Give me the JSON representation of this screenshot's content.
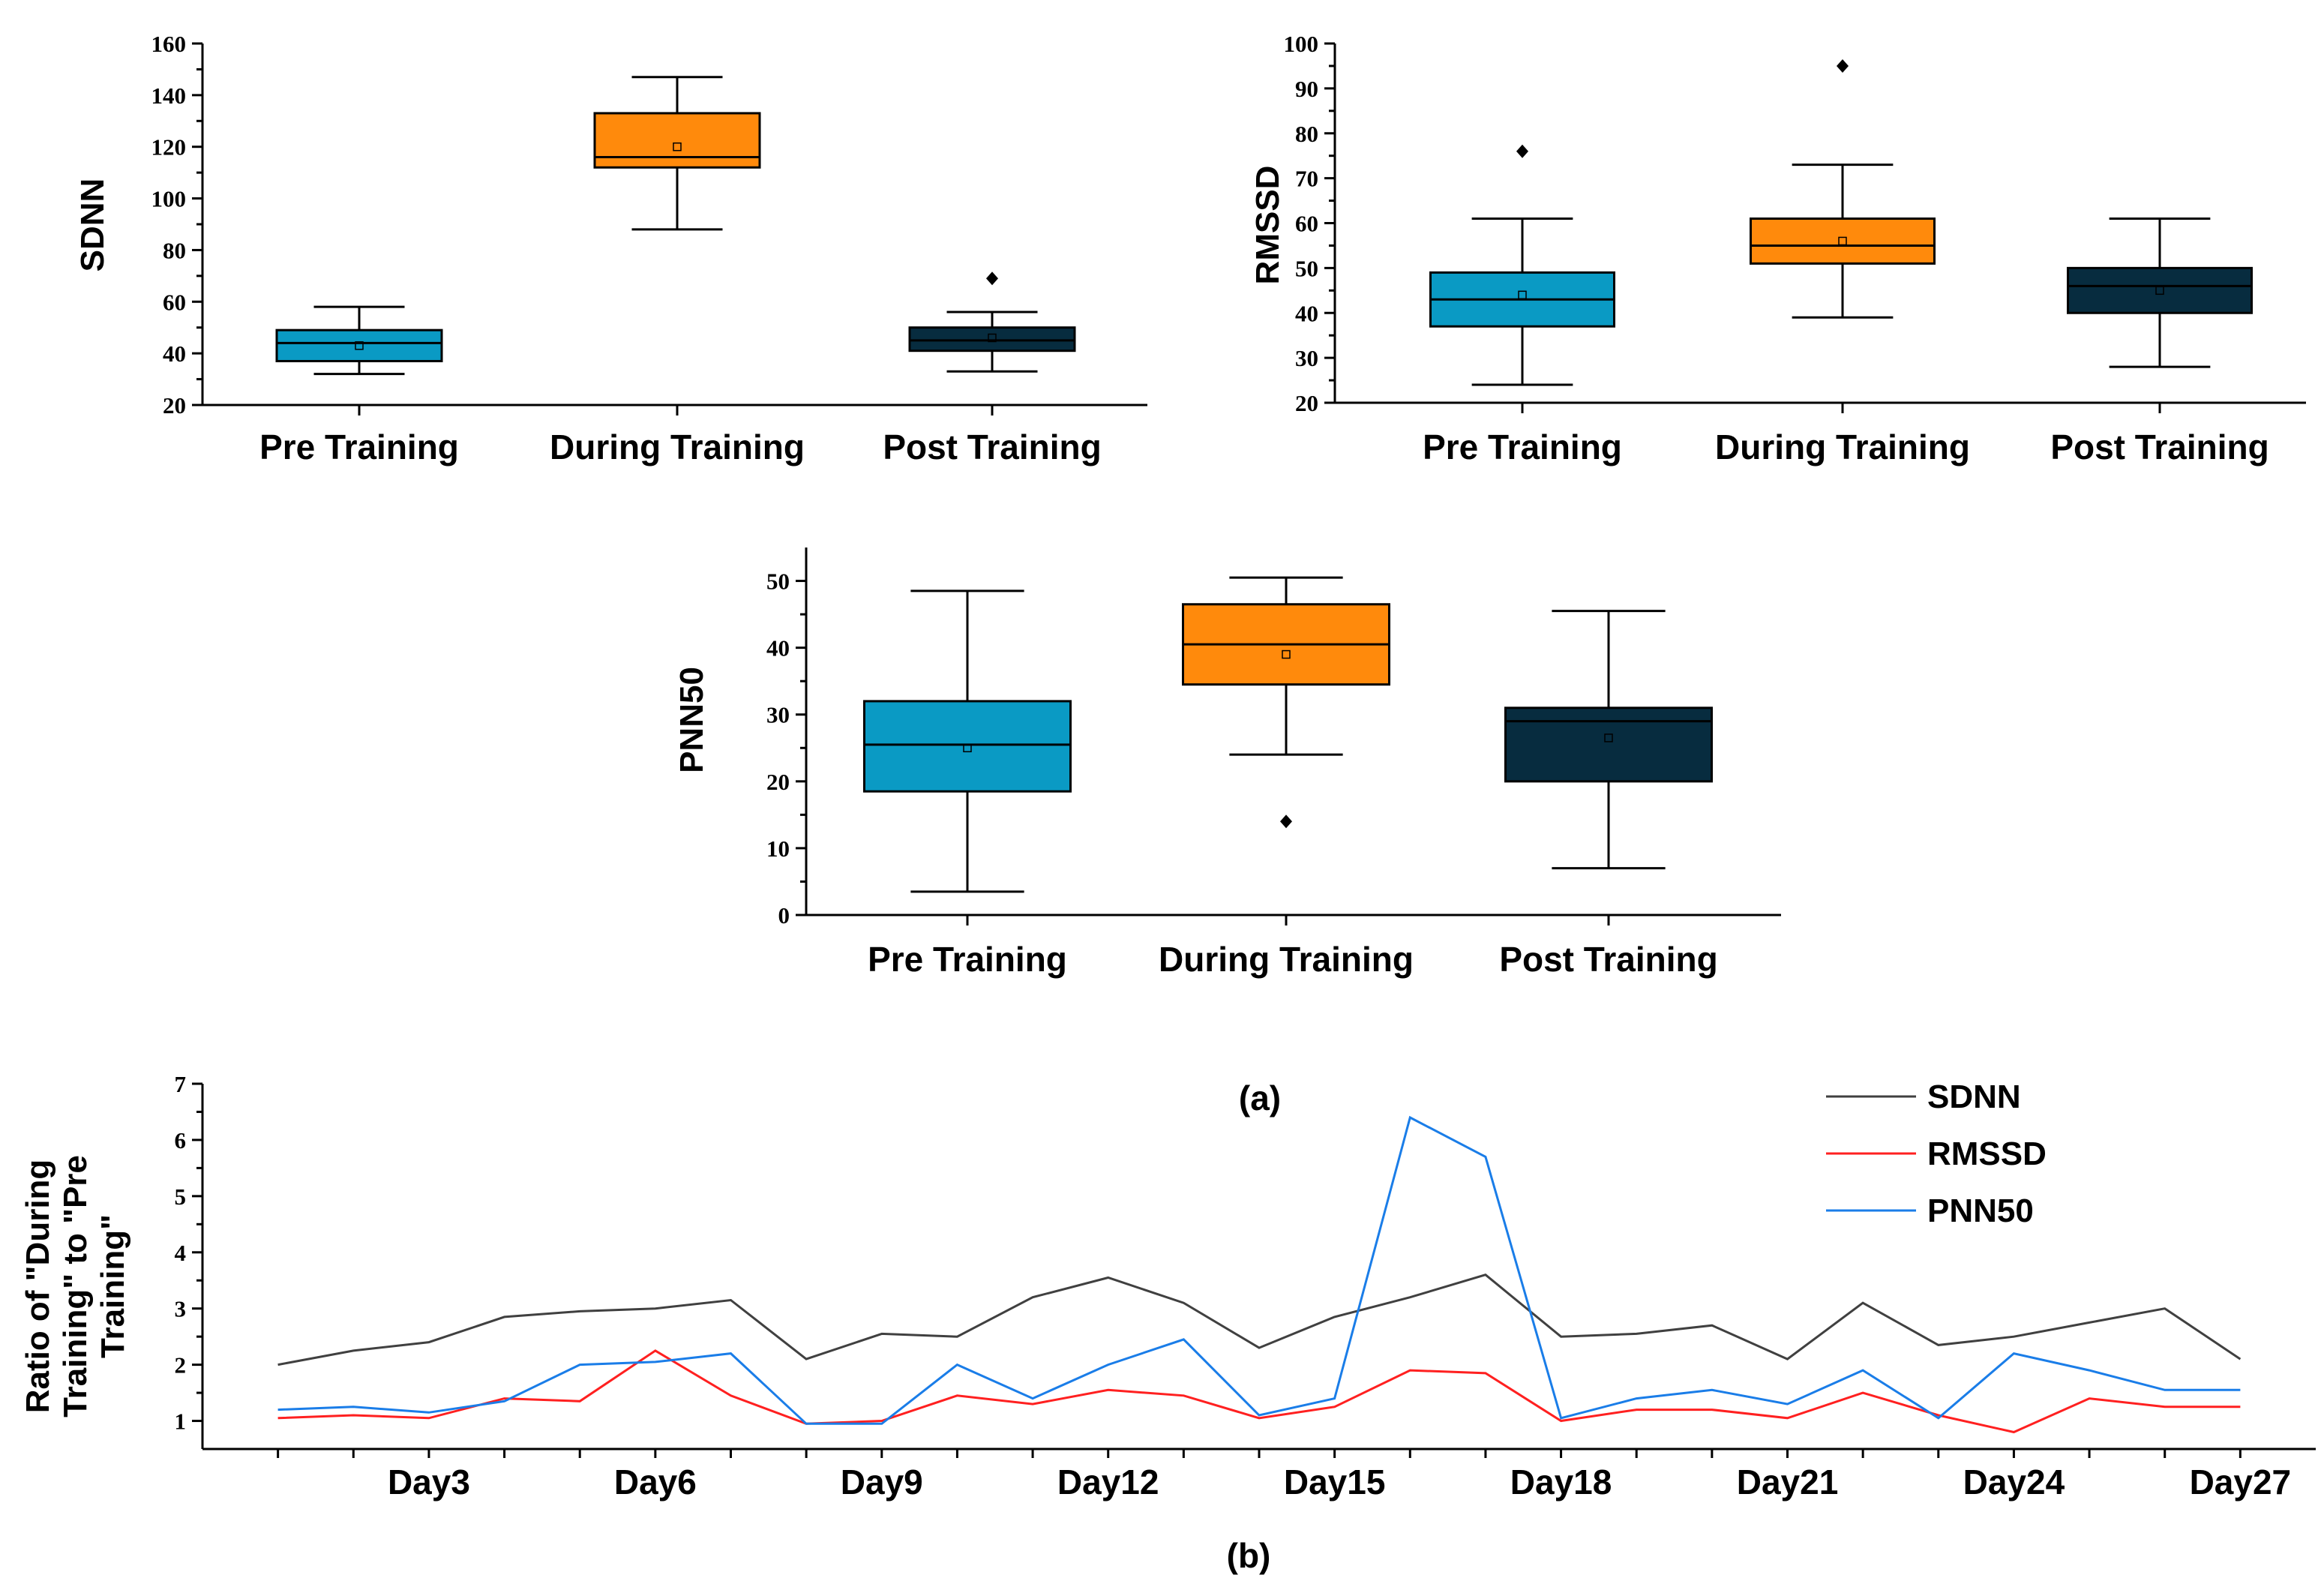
{
  "figure": {
    "caption_a": "(a)",
    "caption_b": "(b)"
  },
  "colors": {
    "pre": "#0a9ac4",
    "during": "#ff8a0c",
    "post": "#072c3f",
    "sdnn_line": "#404040",
    "rmssd_line": "#ff2020",
    "pnn50_line": "#1a7de8"
  },
  "chart_data": [
    {
      "type": "box",
      "id": "sdnn",
      "ylabel": "SDNN",
      "ylim": [
        20,
        160
      ],
      "yticks": [
        20,
        40,
        60,
        80,
        100,
        120,
        140,
        160
      ],
      "categories": [
        "Pre Training",
        "During Training",
        "Post Training"
      ],
      "boxes": [
        {
          "min": 32,
          "q1": 37,
          "median": 44,
          "q3": 49,
          "max": 58,
          "mean": 43,
          "outliers": []
        },
        {
          "min": 88,
          "q1": 112,
          "median": 116,
          "q3": 133,
          "max": 147,
          "mean": 120,
          "outliers": []
        },
        {
          "min": 33,
          "q1": 41,
          "median": 45,
          "q3": 50,
          "max": 56,
          "mean": 46,
          "outliers": [
            69
          ]
        }
      ]
    },
    {
      "type": "box",
      "id": "rmssd",
      "ylabel": "RMSSD",
      "ylim": [
        20,
        100
      ],
      "yticks": [
        20,
        30,
        40,
        50,
        60,
        70,
        80,
        90,
        100
      ],
      "categories": [
        "Pre Training",
        "During Training",
        "Post Training"
      ],
      "boxes": [
        {
          "min": 24,
          "q1": 37,
          "median": 43,
          "q3": 49,
          "max": 61,
          "mean": 44,
          "outliers": [
            76
          ]
        },
        {
          "min": 39,
          "q1": 51,
          "median": 55,
          "q3": 61,
          "max": 73,
          "mean": 56,
          "outliers": [
            95
          ]
        },
        {
          "min": 28,
          "q1": 40,
          "median": 46,
          "q3": 50,
          "max": 61,
          "mean": 45,
          "outliers": []
        }
      ]
    },
    {
      "type": "box",
      "id": "pnn50",
      "ylabel": "PNN50",
      "ylim": [
        0,
        55
      ],
      "yticks": [
        0,
        10,
        20,
        30,
        40,
        50
      ],
      "categories": [
        "Pre Training",
        "During Training",
        "Post Training"
      ],
      "boxes": [
        {
          "min": 3.5,
          "q1": 18.5,
          "median": 25.5,
          "q3": 32,
          "max": 48.5,
          "mean": 25,
          "outliers": []
        },
        {
          "min": 24,
          "q1": 34.5,
          "median": 40.5,
          "q3": 46.5,
          "max": 50.5,
          "mean": 39,
          "outliers": [
            14
          ]
        },
        {
          "min": 7,
          "q1": 20,
          "median": 29,
          "q3": 31,
          "max": 45.5,
          "mean": 26.5,
          "outliers": []
        }
      ]
    },
    {
      "type": "line",
      "id": "ratio",
      "ylabel_lines": [
        "Ratio of \"During",
        "Training\" to \"Pre",
        "Training\""
      ],
      "ylim": [
        0.5,
        7
      ],
      "yticks": [
        1,
        2,
        3,
        4,
        5,
        6,
        7
      ],
      "x": [
        1,
        2,
        3,
        4,
        5,
        6,
        7,
        8,
        9,
        10,
        11,
        12,
        13,
        14,
        15,
        16,
        17,
        18,
        19,
        20,
        21,
        22,
        23,
        24,
        25,
        26,
        27
      ],
      "xlim": [
        0,
        28
      ],
      "xtick_labels": [
        {
          "x": 3,
          "label": "Day3"
        },
        {
          "x": 6,
          "label": "Day6"
        },
        {
          "x": 9,
          "label": "Day9"
        },
        {
          "x": 12,
          "label": "Day12"
        },
        {
          "x": 15,
          "label": "Day15"
        },
        {
          "x": 18,
          "label": "Day18"
        },
        {
          "x": 21,
          "label": "Day21"
        },
        {
          "x": 24,
          "label": "Day24"
        },
        {
          "x": 27,
          "label": "Day27"
        }
      ],
      "series": [
        {
          "name": "SDNN",
          "values": [
            2.0,
            2.25,
            2.4,
            2.85,
            2.95,
            3.0,
            3.15,
            2.1,
            2.55,
            2.5,
            3.2,
            3.55,
            3.1,
            2.3,
            2.85,
            3.2,
            3.6,
            2.5,
            2.55,
            2.7,
            2.1,
            3.1,
            2.35,
            2.5,
            2.75,
            3.0,
            2.1
          ]
        },
        {
          "name": "RMSSD",
          "values": [
            1.05,
            1.1,
            1.05,
            1.4,
            1.35,
            2.25,
            1.45,
            0.95,
            1.0,
            1.45,
            1.3,
            1.55,
            1.45,
            1.05,
            1.25,
            1.9,
            1.85,
            1.0,
            1.2,
            1.2,
            1.05,
            1.5,
            1.1,
            0.8,
            1.4,
            1.25,
            1.25
          ]
        },
        {
          "name": "PNN50",
          "values": [
            1.2,
            1.25,
            1.15,
            1.35,
            2.0,
            2.05,
            2.2,
            0.95,
            0.95,
            2.0,
            1.4,
            2.0,
            2.45,
            1.1,
            1.4,
            6.4,
            5.7,
            1.05,
            1.4,
            1.55,
            1.3,
            1.9,
            1.05,
            2.2,
            1.9,
            1.55,
            1.55
          ]
        }
      ],
      "legend_position": "top-right"
    }
  ]
}
